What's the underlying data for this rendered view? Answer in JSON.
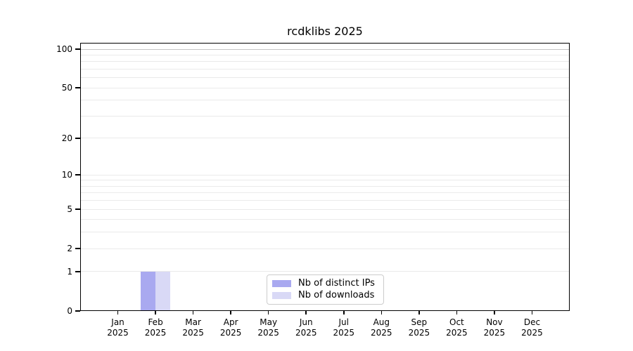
{
  "chart_data": {
    "type": "bar",
    "title": "rcdklibs 2025",
    "year_label": "2025",
    "categories": [
      "Jan",
      "Feb",
      "Mar",
      "Apr",
      "May",
      "Jun",
      "Jul",
      "Aug",
      "Sep",
      "Oct",
      "Nov",
      "Dec"
    ],
    "series": [
      {
        "name": "Nb of distinct IPs",
        "color": "#a9a9f0",
        "values": [
          0,
          1,
          0,
          0,
          0,
          0,
          0,
          0,
          0,
          0,
          0,
          0
        ]
      },
      {
        "name": "Nb of downloads",
        "color": "#d9d9f6",
        "values": [
          0,
          1,
          0,
          0,
          0,
          0,
          0,
          0,
          0,
          0,
          0,
          0
        ]
      }
    ],
    "y_scale": "log1p",
    "y_ticks": [
      0,
      1,
      2,
      5,
      10,
      20,
      50,
      100
    ],
    "grid_values": [
      1,
      2,
      3,
      4,
      5,
      6,
      7,
      8,
      9,
      10,
      20,
      30,
      40,
      50,
      60,
      70,
      80,
      90,
      100
    ],
    "ylim": [
      0,
      105
    ],
    "grid_color": "#eaeaea",
    "grid_emphasis_value": 100,
    "grid_emphasis_color": "#c4c4c4",
    "legend_position": "lower center (inside plot)",
    "grid": "horizontal only"
  }
}
